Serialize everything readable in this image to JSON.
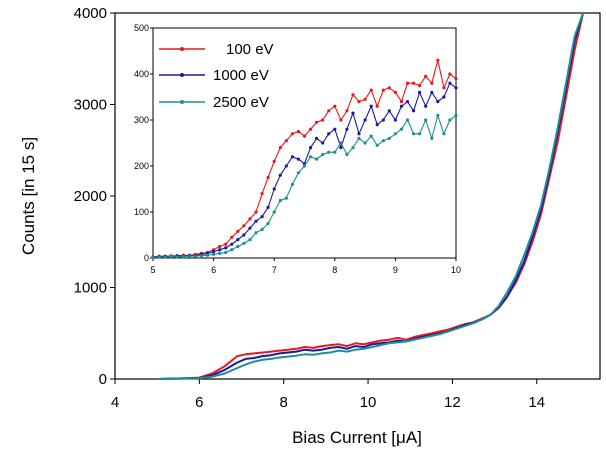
{
  "chart_data": [
    {
      "type": "line",
      "title": "",
      "xlabel": "Bias Current [μA]",
      "ylabel": "Counts [in 15 s]",
      "xlim": [
        4,
        15.5
      ],
      "ylim": [
        0,
        4000
      ],
      "x_ticks": [
        "4",
        "6",
        "8",
        "10",
        "12",
        "14"
      ],
      "y_ticks": [
        "0",
        "1000",
        "2000",
        "3000",
        "4000"
      ],
      "x_tick_values": [
        4,
        6,
        8,
        10,
        12,
        14
      ],
      "y_tick_values": [
        0,
        1000,
        2000,
        3000,
        4000
      ],
      "grid": false,
      "series": [
        {
          "name": "100 eV",
          "color": "#e8191c",
          "x": [
            5.0,
            5.5,
            6.0,
            6.3,
            6.6,
            6.9,
            7.1,
            7.3,
            7.5,
            7.7,
            7.9,
            8.1,
            8.3,
            8.5,
            8.7,
            8.9,
            9.1,
            9.3,
            9.5,
            9.7,
            9.9,
            10.1,
            10.3,
            10.5,
            10.7,
            10.9,
            11.1,
            11.3,
            11.5,
            11.7,
            11.9,
            12.1,
            12.3,
            12.5,
            12.7,
            12.9,
            13.1,
            13.3,
            13.5,
            13.7,
            13.9,
            14.1,
            14.3,
            14.5,
            14.7,
            14.9,
            15.1
          ],
          "y": [
            0,
            5,
            15,
            60,
            140,
            250,
            270,
            280,
            290,
            300,
            310,
            320,
            330,
            350,
            340,
            360,
            370,
            380,
            360,
            390,
            380,
            400,
            420,
            430,
            450,
            430,
            460,
            480,
            500,
            520,
            540,
            570,
            600,
            620,
            660,
            700,
            780,
            900,
            1050,
            1250,
            1500,
            1800,
            2200,
            2600,
            3100,
            3600,
            4000
          ]
        },
        {
          "name": "1000 eV",
          "color": "#1a1aa0",
          "x": [
            5.0,
            5.5,
            6.0,
            6.3,
            6.6,
            6.9,
            7.1,
            7.3,
            7.5,
            7.7,
            7.9,
            8.1,
            8.3,
            8.5,
            8.7,
            8.9,
            9.1,
            9.3,
            9.5,
            9.7,
            9.9,
            10.1,
            10.3,
            10.5,
            10.7,
            10.9,
            11.1,
            11.3,
            11.5,
            11.7,
            11.9,
            12.1,
            12.3,
            12.5,
            12.7,
            12.9,
            13.1,
            13.3,
            13.5,
            13.7,
            13.9,
            14.1,
            14.3,
            14.5,
            14.7,
            14.9,
            15.1
          ],
          "y": [
            0,
            5,
            10,
            40,
            100,
            180,
            220,
            230,
            250,
            260,
            280,
            290,
            300,
            320,
            310,
            320,
            340,
            350,
            330,
            360,
            350,
            380,
            390,
            400,
            420,
            410,
            440,
            460,
            480,
            500,
            520,
            560,
            590,
            620,
            650,
            700,
            780,
            900,
            1080,
            1280,
            1550,
            1850,
            2250,
            2700,
            3200,
            3700,
            4000
          ]
        },
        {
          "name": "2500 eV",
          "color": "#1f8f8f",
          "x": [
            5.0,
            5.5,
            6.0,
            6.3,
            6.6,
            6.9,
            7.1,
            7.3,
            7.5,
            7.7,
            7.9,
            8.1,
            8.3,
            8.5,
            8.7,
            8.9,
            9.1,
            9.3,
            9.5,
            9.7,
            9.9,
            10.1,
            10.3,
            10.5,
            10.7,
            10.9,
            11.1,
            11.3,
            11.5,
            11.7,
            11.9,
            12.1,
            12.3,
            12.5,
            12.7,
            12.9,
            13.1,
            13.3,
            13.5,
            13.7,
            13.9,
            14.1,
            14.3,
            14.5,
            14.7,
            14.9,
            15.1
          ],
          "y": [
            0,
            3,
            8,
            25,
            60,
            120,
            160,
            190,
            210,
            220,
            235,
            245,
            255,
            270,
            265,
            280,
            290,
            310,
            300,
            320,
            330,
            350,
            370,
            390,
            400,
            410,
            430,
            450,
            470,
            490,
            520,
            550,
            580,
            610,
            650,
            700,
            800,
            950,
            1120,
            1350,
            1600,
            1900,
            2300,
            2750,
            3250,
            3750,
            4000
          ]
        }
      ]
    },
    {
      "type": "line",
      "title": "",
      "xlabel": "",
      "ylabel": "",
      "xlim": [
        5,
        10
      ],
      "ylim": [
        0,
        500
      ],
      "x_ticks": [
        "5",
        "6",
        "7",
        "8",
        "9",
        "10"
      ],
      "y_ticks": [
        "0",
        "100",
        "200",
        "300",
        "400",
        "500"
      ],
      "x_tick_values": [
        5,
        6,
        7,
        8,
        9,
        10
      ],
      "y_tick_values": [
        0,
        100,
        200,
        300,
        400,
        500
      ],
      "grid": false,
      "legend_position": "top-left",
      "series": [
        {
          "name": "100 eV",
          "color": "#e8191c",
          "x": [
            5.0,
            5.1,
            5.2,
            5.3,
            5.4,
            5.5,
            5.6,
            5.7,
            5.8,
            5.9,
            6.0,
            6.1,
            6.2,
            6.3,
            6.4,
            6.5,
            6.6,
            6.7,
            6.8,
            6.9,
            7.0,
            7.1,
            7.2,
            7.3,
            7.4,
            7.5,
            7.6,
            7.7,
            7.8,
            7.9,
            8.0,
            8.1,
            8.2,
            8.3,
            8.4,
            8.5,
            8.6,
            8.7,
            8.8,
            8.9,
            9.0,
            9.1,
            9.2,
            9.3,
            9.4,
            9.5,
            9.6,
            9.7,
            9.8,
            9.9,
            10.0
          ],
          "y": [
            2,
            4,
            3,
            5,
            4,
            6,
            5,
            8,
            10,
            12,
            18,
            25,
            30,
            45,
            58,
            70,
            85,
            100,
            140,
            175,
            210,
            240,
            255,
            270,
            275,
            265,
            280,
            295,
            300,
            320,
            330,
            300,
            320,
            355,
            340,
            345,
            365,
            330,
            365,
            370,
            360,
            340,
            380,
            380,
            375,
            395,
            380,
            430,
            370,
            400,
            390
          ]
        },
        {
          "name": "1000 eV",
          "color": "#1a1aa0",
          "x": [
            5.0,
            5.1,
            5.2,
            5.3,
            5.4,
            5.5,
            5.6,
            5.7,
            5.8,
            5.9,
            6.0,
            6.1,
            6.2,
            6.3,
            6.4,
            6.5,
            6.6,
            6.7,
            6.8,
            6.9,
            7.0,
            7.1,
            7.2,
            7.3,
            7.4,
            7.5,
            7.6,
            7.7,
            7.8,
            7.9,
            8.0,
            8.1,
            8.2,
            8.3,
            8.4,
            8.5,
            8.6,
            8.7,
            8.8,
            8.9,
            9.0,
            9.1,
            9.2,
            9.3,
            9.4,
            9.5,
            9.6,
            9.7,
            9.8,
            9.9,
            10.0
          ],
          "y": [
            2,
            3,
            4,
            3,
            5,
            4,
            6,
            5,
            8,
            10,
            14,
            18,
            22,
            30,
            40,
            50,
            65,
            80,
            90,
            110,
            150,
            180,
            200,
            220,
            215,
            205,
            240,
            260,
            250,
            270,
            280,
            240,
            280,
            315,
            270,
            300,
            330,
            290,
            300,
            320,
            300,
            330,
            340,
            320,
            360,
            330,
            360,
            340,
            350,
            380,
            370
          ]
        },
        {
          "name": "2500 eV",
          "color": "#1f8f8f",
          "x": [
            5.0,
            5.1,
            5.2,
            5.3,
            5.4,
            5.5,
            5.6,
            5.7,
            5.8,
            5.9,
            6.0,
            6.1,
            6.2,
            6.3,
            6.4,
            6.5,
            6.6,
            6.7,
            6.8,
            6.9,
            7.0,
            7.1,
            7.2,
            7.3,
            7.4,
            7.5,
            7.6,
            7.7,
            7.8,
            7.9,
            8.0,
            8.1,
            8.2,
            8.3,
            8.4,
            8.5,
            8.6,
            8.7,
            8.8,
            8.9,
            9.0,
            9.1,
            9.2,
            9.3,
            9.4,
            9.5,
            9.6,
            9.7,
            9.8,
            9.9,
            10.0
          ],
          "y": [
            1,
            2,
            2,
            3,
            2,
            3,
            4,
            4,
            5,
            6,
            8,
            10,
            12,
            18,
            25,
            32,
            40,
            55,
            62,
            75,
            100,
            125,
            130,
            160,
            185,
            200,
            220,
            215,
            225,
            230,
            230,
            250,
            225,
            240,
            260,
            250,
            265,
            245,
            255,
            260,
            270,
            280,
            300,
            270,
            270,
            300,
            260,
            310,
            270,
            300,
            310
          ]
        }
      ]
    }
  ]
}
